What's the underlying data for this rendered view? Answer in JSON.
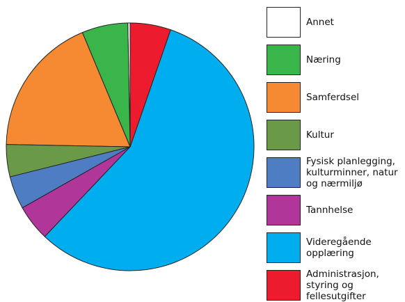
{
  "chart_data": {
    "type": "pie",
    "categories": [
      [
        "Annet"
      ],
      [
        "Næring"
      ],
      [
        "Samferdsel"
      ],
      [
        "Kultur"
      ],
      [
        "Fysisk planlegging,",
        "kulturminner, natur",
        "og nærmiljø"
      ],
      [
        "Tannhelse"
      ],
      [
        "Videregående",
        "opplæring"
      ],
      [
        "Administrasjon,",
        "styring og",
        "fellesutgifter"
      ]
    ],
    "values": [
      0.3,
      6.0,
      18.4,
      4.2,
      4.3,
      4.7,
      56.8,
      5.3
    ],
    "colors": [
      "#ffffff",
      "#3ab54a",
      "#f68a33",
      "#6a9a48",
      "#4f7dc3",
      "#b0369a",
      "#00aeef",
      "#ec1c2e"
    ]
  }
}
